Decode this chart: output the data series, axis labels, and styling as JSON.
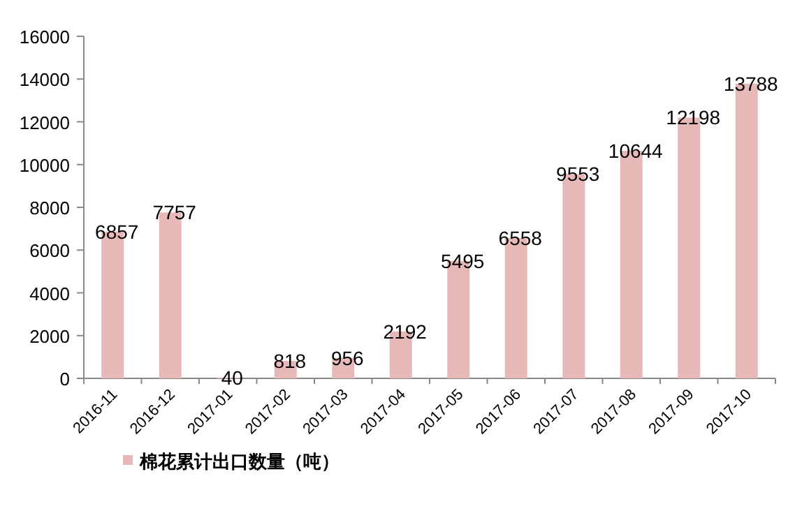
{
  "chart_data": {
    "type": "bar",
    "categories": [
      "2016-11",
      "2016-12",
      "2017-01",
      "2017-02",
      "2017-03",
      "2017-04",
      "2017-05",
      "2017-06",
      "2017-07",
      "2017-08",
      "2017-09",
      "2017-10"
    ],
    "series": [
      {
        "name": "棉花累计出口数量（吨）",
        "color": "#e6b9b8",
        "values": [
          6857,
          7757,
          40,
          818,
          956,
          2192,
          5495,
          6558,
          9553,
          10644,
          12198,
          13788
        ]
      }
    ],
    "ylim": [
      0,
      16000
    ],
    "yticks": [
      0,
      2000,
      4000,
      6000,
      8000,
      10000,
      12000,
      14000,
      16000
    ],
    "data_labels": true,
    "legend": "bottom",
    "grid": false
  }
}
